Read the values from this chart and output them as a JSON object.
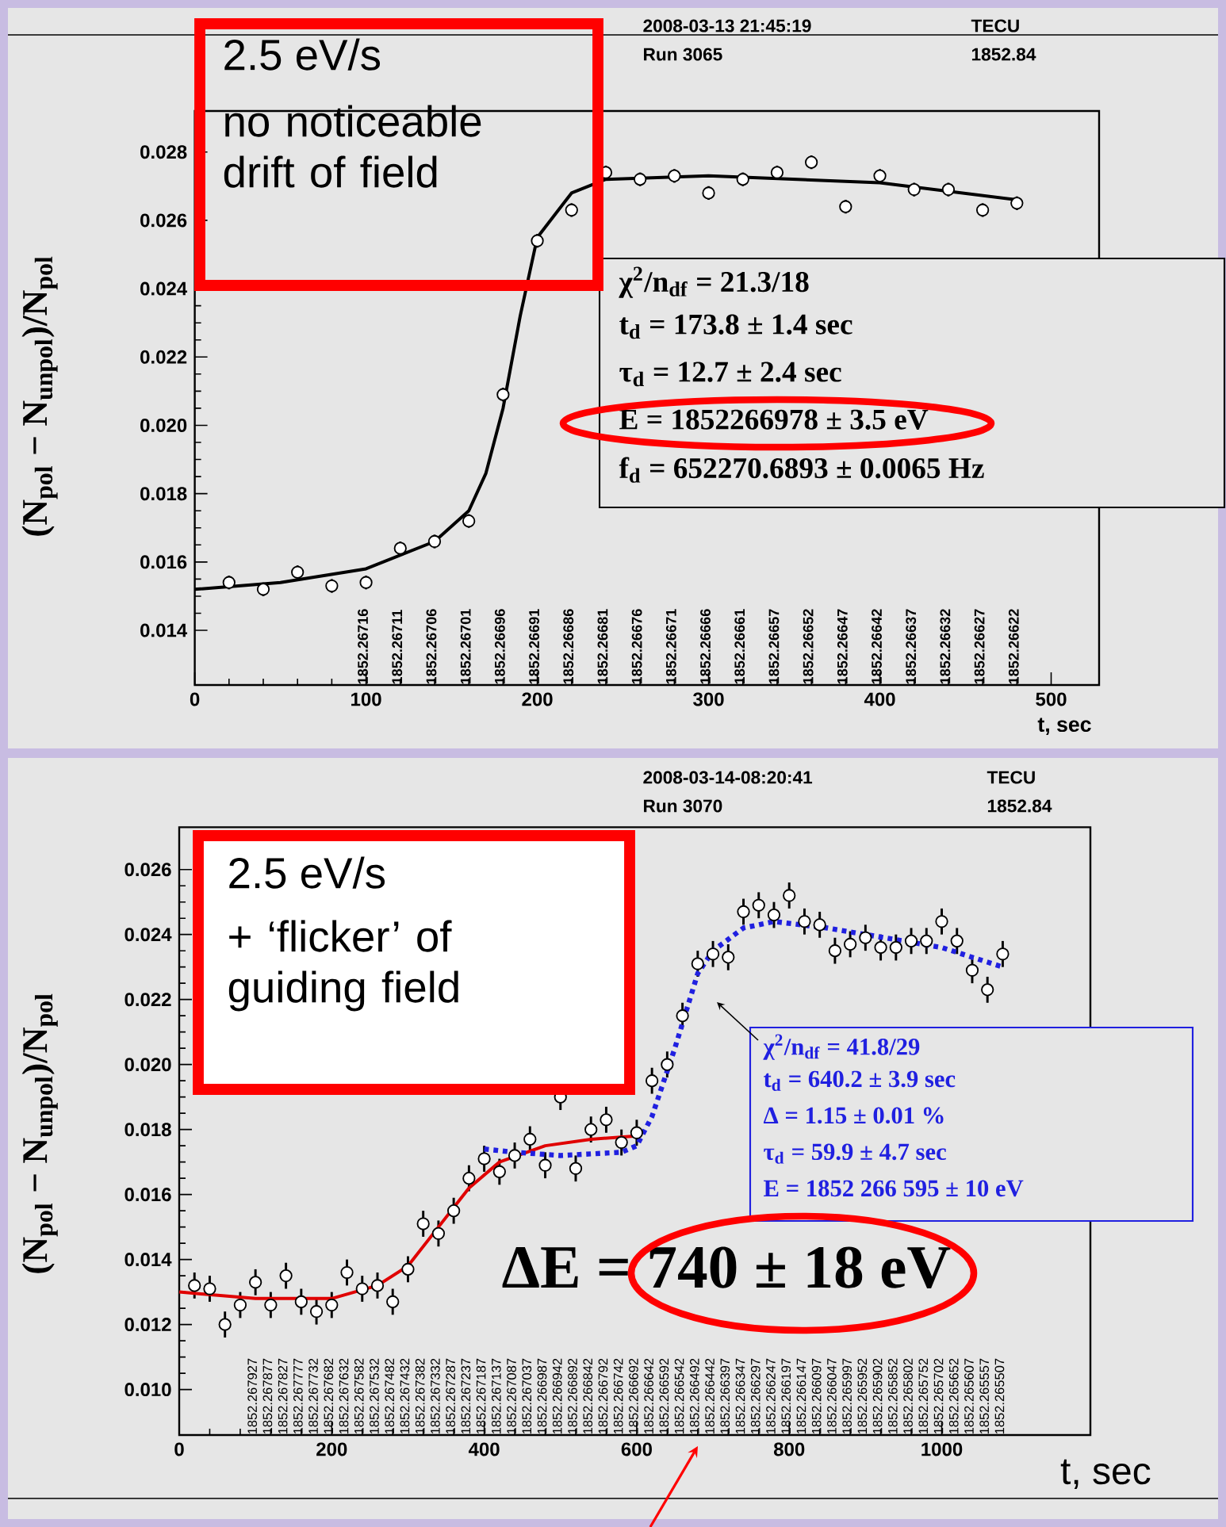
{
  "chart_data": [
    {
      "type": "scatter",
      "xlabel": "t, sec",
      "ylabel": "(N$_{pol}$ − N$_{unpol}$)/N$_{pol}$",
      "xlim": [
        0,
        528
      ],
      "ylim": [
        0.0124,
        0.0292
      ],
      "xticks": [
        0,
        100,
        200,
        300,
        400,
        500
      ],
      "yticks": [
        {
          "value": 0.014,
          "label": "0.014"
        },
        {
          "value": 0.016,
          "label": "0.016"
        },
        {
          "value": 0.018,
          "label": "0.018"
        },
        {
          "value": 0.02,
          "label": "0.020"
        },
        {
          "value": 0.022,
          "label": "0.022"
        },
        {
          "value": 0.024,
          "label": "0.024"
        },
        {
          "value": 0.026,
          "label": "0.026"
        },
        {
          "value": 0.028,
          "label": "0.028"
        }
      ],
      "series": [
        {
          "type": "scatter",
          "color": "#000000",
          "marker": "circle",
          "x": [
            20,
            40,
            60,
            80,
            100,
            120,
            140,
            160,
            180,
            200,
            220,
            240,
            260,
            280,
            300,
            320,
            340,
            360,
            380,
            400,
            420,
            440,
            460,
            480
          ],
          "values": [
            0.0154,
            0.0152,
            0.0157,
            0.0153,
            0.0154,
            0.0164,
            0.0166,
            0.0172,
            0.0209,
            0.0254,
            0.0263,
            0.0274,
            0.0272,
            0.0273,
            0.0268,
            0.0272,
            0.0274,
            0.0277,
            0.0264,
            0.0273,
            0.0269,
            0.0269,
            0.0263,
            0.0265
          ],
          "errors": [
            0.0002,
            0.0002,
            0.0002,
            0.0002,
            0.0002,
            0.0002,
            0.0002,
            0.0002,
            0.0002,
            0.0002,
            0.0002,
            0.0002,
            0.0002,
            0.0002,
            0.0002,
            0.0002,
            0.0002,
            0.0002,
            0.0002,
            0.0002,
            0.0002,
            0.0002,
            0.0002,
            0.0002
          ]
        },
        {
          "type": "line",
          "color": "#000000",
          "line_style": "solid",
          "x": [
            0,
            50,
            100,
            140,
            160,
            170,
            180,
            190,
            200,
            220,
            240,
            300,
            400,
            480
          ],
          "values": [
            0.0152,
            0.0154,
            0.0158,
            0.0166,
            0.0175,
            0.0186,
            0.0205,
            0.0232,
            0.0255,
            0.0268,
            0.0272,
            0.0273,
            0.0271,
            0.0266
          ]
        }
      ],
      "annotations": [
        "2008-03-13 21:45:19",
        "Run 3065",
        "TECU",
        "1852.84",
        "2.5 eV/s",
        "no noticeable drift of field",
        "χ$^{2}$/n$_{df}$ = 21.3/18",
        "t$_{d}$ = 173.8 ± 1.4 sec",
        "τ$_{d}$ = 12.7 ± 2.4 sec",
        "E = 1852266978 ± 3.5 eV",
        "f$_{d}$ = 652270.6893 ± 0.0065 Hz",
        "1852.26716",
        "1852.26711",
        "1852.26706",
        "1852.26701",
        "1852.26696",
        "1852.26691",
        "1852.26686",
        "1852.26681",
        "1852.26676",
        "1852.26671",
        "1852.26666",
        "1852.26661",
        "1852.26657",
        "1852.26652",
        "1852.26647",
        "1852.26642",
        "1852.26637",
        "1852.26632",
        "1852.26627",
        "1852.26622"
      ]
    },
    {
      "type": "scatter",
      "xlabel": "t, sec",
      "ylabel": "(N$_{pol}$ − N$_{unpol}$)/N$_{pol}$",
      "xlim": [
        0,
        1195
      ],
      "ylim": [
        0.0086,
        0.0273
      ],
      "xticks": [
        0,
        200,
        400,
        600,
        800,
        1000
      ],
      "yticks": [
        {
          "value": 0.01,
          "label": "0.010"
        },
        {
          "value": 0.012,
          "label": "0.012"
        },
        {
          "value": 0.014,
          "label": "0.014"
        },
        {
          "value": 0.016,
          "label": "0.016"
        },
        {
          "value": 0.018,
          "label": "0.018"
        },
        {
          "value": 0.02,
          "label": "0.020"
        },
        {
          "value": 0.022,
          "label": "0.022"
        },
        {
          "value": 0.024,
          "label": "0.024"
        },
        {
          "value": 0.026,
          "label": "0.026"
        }
      ],
      "series": [
        {
          "type": "scatter",
          "color": "#000000",
          "marker": "circle",
          "x": [
            20,
            40,
            60,
            80,
            100,
            120,
            140,
            160,
            180,
            200,
            220,
            240,
            260,
            280,
            300,
            320,
            340,
            360,
            380,
            400,
            420,
            440,
            460,
            480,
            500,
            520,
            540,
            560,
            580,
            600,
            620,
            640,
            660,
            680,
            700,
            720,
            740,
            760,
            780,
            800,
            820,
            840,
            860,
            880,
            900,
            920,
            940,
            960,
            980,
            1000,
            1020,
            1040,
            1060,
            1080
          ],
          "values": [
            0.0132,
            0.0131,
            0.012,
            0.0126,
            0.0133,
            0.0126,
            0.0135,
            0.0127,
            0.0124,
            0.0126,
            0.0136,
            0.0131,
            0.0132,
            0.0127,
            0.0137,
            0.0151,
            0.0148,
            0.0155,
            0.0165,
            0.0171,
            0.0167,
            0.0172,
            0.0177,
            0.0169,
            0.019,
            0.0168,
            0.018,
            0.0183,
            0.0176,
            0.0179,
            0.0195,
            0.02,
            0.0215,
            0.0231,
            0.0234,
            0.0233,
            0.0247,
            0.0249,
            0.0246,
            0.0252,
            0.0244,
            0.0243,
            0.0235,
            0.0237,
            0.0239,
            0.0236,
            0.0236,
            0.0238,
            0.0238,
            0.0244,
            0.0238,
            0.0229,
            0.0223,
            0.0234
          ],
          "errors": [
            0.0004,
            0.0004,
            0.0004,
            0.0004,
            0.0004,
            0.0004,
            0.0004,
            0.0004,
            0.0004,
            0.0004,
            0.0004,
            0.0004,
            0.0004,
            0.0004,
            0.0004,
            0.0004,
            0.0004,
            0.0004,
            0.0004,
            0.0004,
            0.0004,
            0.0004,
            0.0004,
            0.0004,
            0.0004,
            0.0004,
            0.0004,
            0.0004,
            0.0004,
            0.0004,
            0.0004,
            0.0004,
            0.0004,
            0.0004,
            0.0004,
            0.0004,
            0.0004,
            0.0004,
            0.0004,
            0.0004,
            0.0004,
            0.0004,
            0.0004,
            0.0004,
            0.0004,
            0.0004,
            0.0004,
            0.0004,
            0.0004,
            0.0004,
            0.0004,
            0.0004,
            0.0004,
            0.0004
          ]
        },
        {
          "type": "line",
          "color": "#e00000",
          "line_style": "solid",
          "x": [
            0,
            100,
            200,
            260,
            300,
            340,
            380,
            420,
            480,
            540,
            600
          ],
          "values": [
            0.013,
            0.0128,
            0.0128,
            0.0132,
            0.0138,
            0.015,
            0.0162,
            0.017,
            0.0175,
            0.0177,
            0.0178
          ]
        },
        {
          "type": "line",
          "color": "#2020e0",
          "line_style": "dotted",
          "x": [
            400,
            440,
            500,
            580,
            600,
            620,
            650,
            680,
            700,
            740,
            780,
            850,
            950,
            1000,
            1080
          ],
          "values": [
            0.0174,
            0.0173,
            0.0172,
            0.0173,
            0.0175,
            0.0184,
            0.0205,
            0.0228,
            0.0235,
            0.0242,
            0.0244,
            0.0242,
            0.0238,
            0.0236,
            0.023
          ]
        }
      ],
      "annotations": [
        "2008-03-14-08:20:41",
        "Run 3070",
        "TECU",
        "1852.84",
        "2.5 eV/s",
        "+ ‘flicker’ of guiding field",
        "χ$^{2}$/n$_{df}$ = 41.8/29",
        "t$_{d}$ = 640.2 ± 3.9 sec",
        "Δ = 1.15 ± 0.01 %",
        "τ$_{d}$ = 59.9 ± 4.7 sec",
        "E = 1852 266 595 ± 10 eV",
        "ΔE = 740 ± 18 eV",
        "1852.267927",
        "1852.267877",
        "1852.267827",
        "1852.267777",
        "1852.267732",
        "1852.267682",
        "1852.267632",
        "1852.267582",
        "1852.267532",
        "1852.267482",
        "1852.267432",
        "1852.267382",
        "1852.267332",
        "1852.267287",
        "1852.267237",
        "1852.267187",
        "1852.267137",
        "1852.267087",
        "1852.267037",
        "1852.266987",
        "1852.266942",
        "1852.266892",
        "1852.266842",
        "1852.266792",
        "1852.266742",
        "1852.266692",
        "1852.266642",
        "1852.266592",
        "1852.266542",
        "1852.266492",
        "1852.266442",
        "1852.266397",
        "1852.266347",
        "1852.266297",
        "1852.266247",
        "1852.266197",
        "1852.266147",
        "1852.266097",
        "1852.266047",
        "1852.265997",
        "1852.265952",
        "1852.265902",
        "1852.265852",
        "1852.265802",
        "1852.265752",
        "1852.265702",
        "1852.265652",
        "1852.265607",
        "1852.265557",
        "1852.265507"
      ]
    }
  ]
}
